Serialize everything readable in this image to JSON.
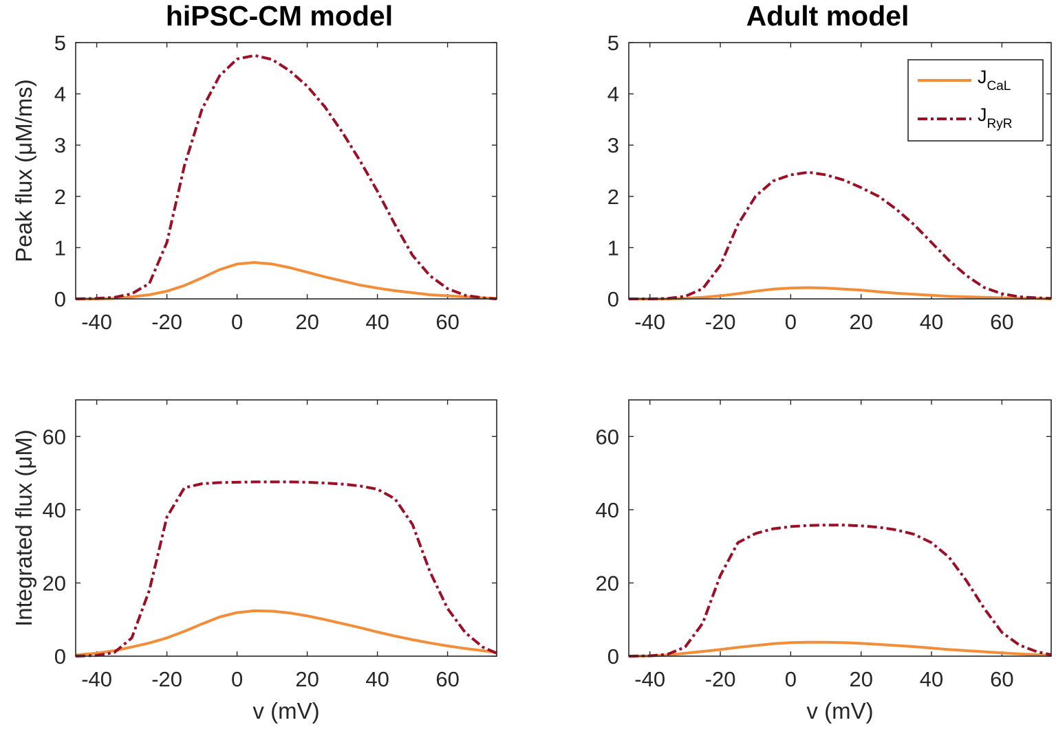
{
  "colors": {
    "cal": "#F28E3A",
    "ryr": "#9A1127",
    "axis": "#262626"
  },
  "column_titles": [
    "hiPSC-CM model",
    "Adult model"
  ],
  "legend": {
    "cal_main": "J",
    "cal_sub": "CaL",
    "ryr_main": "J",
    "ryr_sub": "RyR"
  },
  "chart_data": [
    {
      "type": "line",
      "title": "hiPSC-CM model",
      "xlabel": "",
      "ylabel": "Peak flux (μM/ms)",
      "xlim": [
        -46,
        74
      ],
      "ylim": [
        0,
        5
      ],
      "xticks": [
        -40,
        -20,
        0,
        20,
        40,
        60
      ],
      "yticks": [
        0,
        1,
        2,
        3,
        4,
        5
      ],
      "series": [
        {
          "name": "J_CaL",
          "x": [
            -46,
            -40,
            -35,
            -30,
            -25,
            -20,
            -15,
            -10,
            -5,
            0,
            5,
            10,
            15,
            20,
            25,
            30,
            35,
            40,
            45,
            50,
            55,
            60,
            65,
            70,
            74
          ],
          "y": [
            0,
            0,
            0.01,
            0.04,
            0.08,
            0.15,
            0.26,
            0.41,
            0.57,
            0.68,
            0.71,
            0.68,
            0.61,
            0.52,
            0.43,
            0.35,
            0.27,
            0.21,
            0.16,
            0.12,
            0.08,
            0.06,
            0.04,
            0.02,
            0.01
          ]
        },
        {
          "name": "J_RyR",
          "x": [
            -46,
            -40,
            -35,
            -30,
            -25,
            -20,
            -15,
            -10,
            -5,
            0,
            5,
            10,
            15,
            20,
            25,
            30,
            35,
            40,
            45,
            50,
            55,
            60,
            65,
            70,
            74
          ],
          "y": [
            0,
            0.01,
            0.03,
            0.1,
            0.3,
            1.1,
            2.6,
            3.7,
            4.35,
            4.68,
            4.75,
            4.67,
            4.45,
            4.15,
            3.75,
            3.25,
            2.7,
            2.1,
            1.45,
            0.85,
            0.45,
            0.2,
            0.07,
            0.02,
            0
          ]
        }
      ]
    },
    {
      "type": "line",
      "title": "Adult model",
      "xlabel": "",
      "ylabel": "",
      "xlim": [
        -46,
        74
      ],
      "ylim": [
        0,
        5
      ],
      "xticks": [
        -40,
        -20,
        0,
        20,
        40,
        60
      ],
      "yticks": [
        0,
        1,
        2,
        3,
        4,
        5
      ],
      "series": [
        {
          "name": "J_CaL",
          "x": [
            -46,
            -40,
            -35,
            -30,
            -25,
            -20,
            -15,
            -10,
            -5,
            0,
            5,
            10,
            15,
            20,
            25,
            30,
            35,
            40,
            45,
            50,
            55,
            60,
            65,
            70,
            74
          ],
          "y": [
            0,
            0,
            0,
            0.01,
            0.03,
            0.06,
            0.1,
            0.15,
            0.19,
            0.21,
            0.22,
            0.21,
            0.19,
            0.17,
            0.14,
            0.11,
            0.09,
            0.07,
            0.05,
            0.04,
            0.03,
            0.02,
            0.01,
            0.01,
            0
          ]
        },
        {
          "name": "J_RyR",
          "x": [
            -46,
            -40,
            -35,
            -30,
            -25,
            -20,
            -15,
            -10,
            -5,
            0,
            5,
            10,
            15,
            20,
            25,
            30,
            35,
            40,
            45,
            50,
            55,
            60,
            65,
            70,
            74
          ],
          "y": [
            0,
            0,
            0.01,
            0.05,
            0.2,
            0.65,
            1.45,
            2.0,
            2.3,
            2.42,
            2.47,
            2.42,
            2.32,
            2.17,
            2.0,
            1.75,
            1.45,
            1.1,
            0.75,
            0.45,
            0.22,
            0.1,
            0.04,
            0.02,
            0.01
          ]
        }
      ]
    },
    {
      "type": "line",
      "title": "",
      "xlabel": "v (mV)",
      "ylabel": "Integrated flux (μM)",
      "xlim": [
        -46,
        74
      ],
      "ylim": [
        0,
        70
      ],
      "xticks": [
        -40,
        -20,
        0,
        20,
        40,
        60
      ],
      "yticks": [
        0,
        20,
        40,
        60
      ],
      "series": [
        {
          "name": "J_CaL",
          "x": [
            -46,
            -40,
            -35,
            -30,
            -25,
            -20,
            -15,
            -10,
            -5,
            0,
            5,
            10,
            15,
            20,
            25,
            30,
            35,
            40,
            45,
            50,
            55,
            60,
            65,
            70,
            74
          ],
          "y": [
            0.3,
            0.8,
            1.5,
            2.5,
            3.6,
            5.0,
            6.8,
            8.8,
            10.7,
            11.9,
            12.4,
            12.3,
            11.8,
            11.0,
            10.0,
            8.9,
            7.8,
            6.6,
            5.5,
            4.5,
            3.6,
            2.8,
            2.1,
            1.5,
            1.0
          ]
        },
        {
          "name": "J_RyR",
          "x": [
            -46,
            -40,
            -35,
            -30,
            -25,
            -20,
            -15,
            -10,
            -5,
            0,
            5,
            10,
            15,
            20,
            25,
            30,
            35,
            40,
            45,
            50,
            55,
            60,
            65,
            70,
            74
          ],
          "y": [
            0,
            0.2,
            1.0,
            5.0,
            18.0,
            38.0,
            46.0,
            47.1,
            47.4,
            47.5,
            47.6,
            47.6,
            47.6,
            47.5,
            47.3,
            47.0,
            46.5,
            45.6,
            43.0,
            36.0,
            23.0,
            13.0,
            6.5,
            2.5,
            0.8
          ]
        }
      ]
    },
    {
      "type": "line",
      "title": "",
      "xlabel": "v (mV)",
      "ylabel": "",
      "xlim": [
        -46,
        74
      ],
      "ylim": [
        0,
        70
      ],
      "xticks": [
        -40,
        -20,
        0,
        20,
        40,
        60
      ],
      "yticks": [
        0,
        20,
        40,
        60
      ],
      "series": [
        {
          "name": "J_CaL",
          "x": [
            -46,
            -40,
            -35,
            -30,
            -25,
            -20,
            -15,
            -10,
            -5,
            0,
            5,
            10,
            15,
            20,
            25,
            30,
            35,
            40,
            45,
            50,
            55,
            60,
            65,
            70,
            74
          ],
          "y": [
            0,
            0.1,
            0.3,
            0.8,
            1.3,
            1.8,
            2.4,
            2.9,
            3.4,
            3.7,
            3.8,
            3.8,
            3.7,
            3.5,
            3.2,
            2.9,
            2.6,
            2.2,
            1.8,
            1.5,
            1.2,
            0.9,
            0.6,
            0.4,
            0.2
          ]
        },
        {
          "name": "J_RyR",
          "x": [
            -46,
            -40,
            -35,
            -30,
            -25,
            -20,
            -15,
            -10,
            -5,
            0,
            5,
            10,
            15,
            20,
            25,
            30,
            35,
            40,
            45,
            50,
            55,
            60,
            65,
            70,
            74
          ],
          "y": [
            0,
            0.1,
            0.5,
            2.5,
            9.0,
            22.0,
            31.0,
            33.5,
            34.8,
            35.4,
            35.7,
            35.8,
            35.8,
            35.6,
            35.2,
            34.5,
            33.3,
            31.0,
            27.0,
            20.5,
            13.0,
            6.5,
            3.0,
            1.2,
            0.4
          ]
        }
      ]
    }
  ]
}
